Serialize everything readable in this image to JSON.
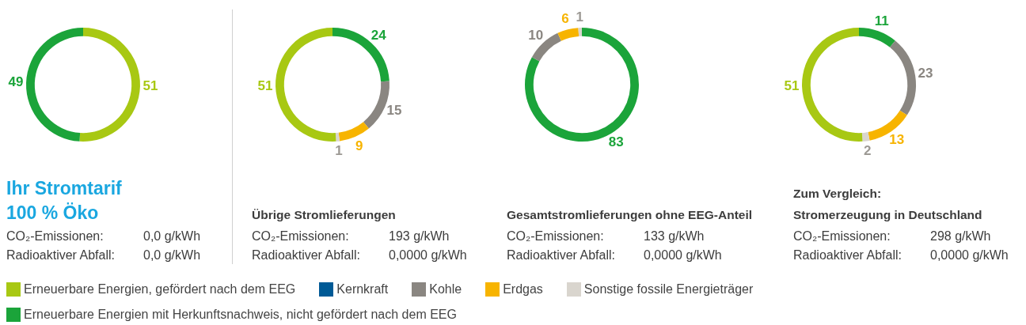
{
  "chart_data": [
    {
      "type": "donut",
      "title": "Ihr Stromtarif\n100 % Öko",
      "categories": [
        "Erneuerbare Energien, gefördert nach dem EEG",
        "Kernkraft",
        "Kohle",
        "Erdgas",
        "Sonstige fossile Energieträger",
        "Erneuerbare Energien mit Herkunftsnachweis, nicht gefördert nach dem EEG"
      ],
      "values": [
        51,
        0,
        0,
        0,
        0,
        49
      ],
      "colors": [
        "#a8c813",
        "#005a96",
        "#8a8681",
        "#f7b400",
        "#d9d5ce",
        "#1ba43a"
      ],
      "value_labels": [
        "51",
        null,
        null,
        null,
        null,
        "49"
      ],
      "annotations": [
        "CO₂-Emissionen:\t0,0 g/kWh",
        "Radioaktiver Abfall:\t0,0 g/kWh"
      ],
      "legend": "bottom"
    },
    {
      "type": "donut",
      "title": "Übrige Stromlieferungen",
      "categories": [
        null,
        null,
        null,
        null,
        null,
        null
      ],
      "values": [
        24,
        0,
        15,
        9,
        1,
        51
      ],
      "colors": [
        "#1ba43a",
        "#005a96",
        "#8a8681",
        "#f7b400",
        "#d9d5ce",
        "#a8c813"
      ],
      "value_labels": [
        "24",
        null,
        "15",
        "9",
        "1",
        "51"
      ],
      "annotations": [
        "CO₂-Emissionen:\t193 g/kWh",
        "Radioaktiver Abfall:\t0,0000 g/kWh"
      ]
    },
    {
      "type": "donut",
      "title": "Gesamtstromlieferungen ohne EEG-Anteil",
      "categories": [
        null,
        null,
        null,
        null,
        null,
        null
      ],
      "values": [
        83,
        0,
        10,
        6,
        1,
        0
      ],
      "colors": [
        "#1ba43a",
        "#005a96",
        "#8a8681",
        "#f7b400",
        "#d9d5ce",
        "#a8c813"
      ],
      "value_labels": [
        "83",
        null,
        "10",
        "6",
        "1",
        null
      ],
      "annotations": [
        "CO₂-Emissionen:\t133 g/kWh",
        "Radioaktiver Abfall:\t0,0000 g/kWh"
      ]
    },
    {
      "type": "donut",
      "title": "Zum Vergleich:\nStromerzeugung in Deutschland",
      "categories": [
        null,
        null,
        null,
        null,
        null,
        null
      ],
      "values": [
        11,
        0,
        23,
        13,
        2,
        51
      ],
      "colors": [
        "#1ba43a",
        "#005a96",
        "#8a8681",
        "#f7b400",
        "#d9d5ce",
        "#a8c813"
      ],
      "value_labels": [
        "11",
        null,
        "23",
        "13",
        "2",
        "51"
      ],
      "annotations": [
        "CO₂-Emissionen:\t298 g/kWh",
        "Radioaktiver Abfall:\t0,0000 g/kWh"
      ]
    }
  ]
}
